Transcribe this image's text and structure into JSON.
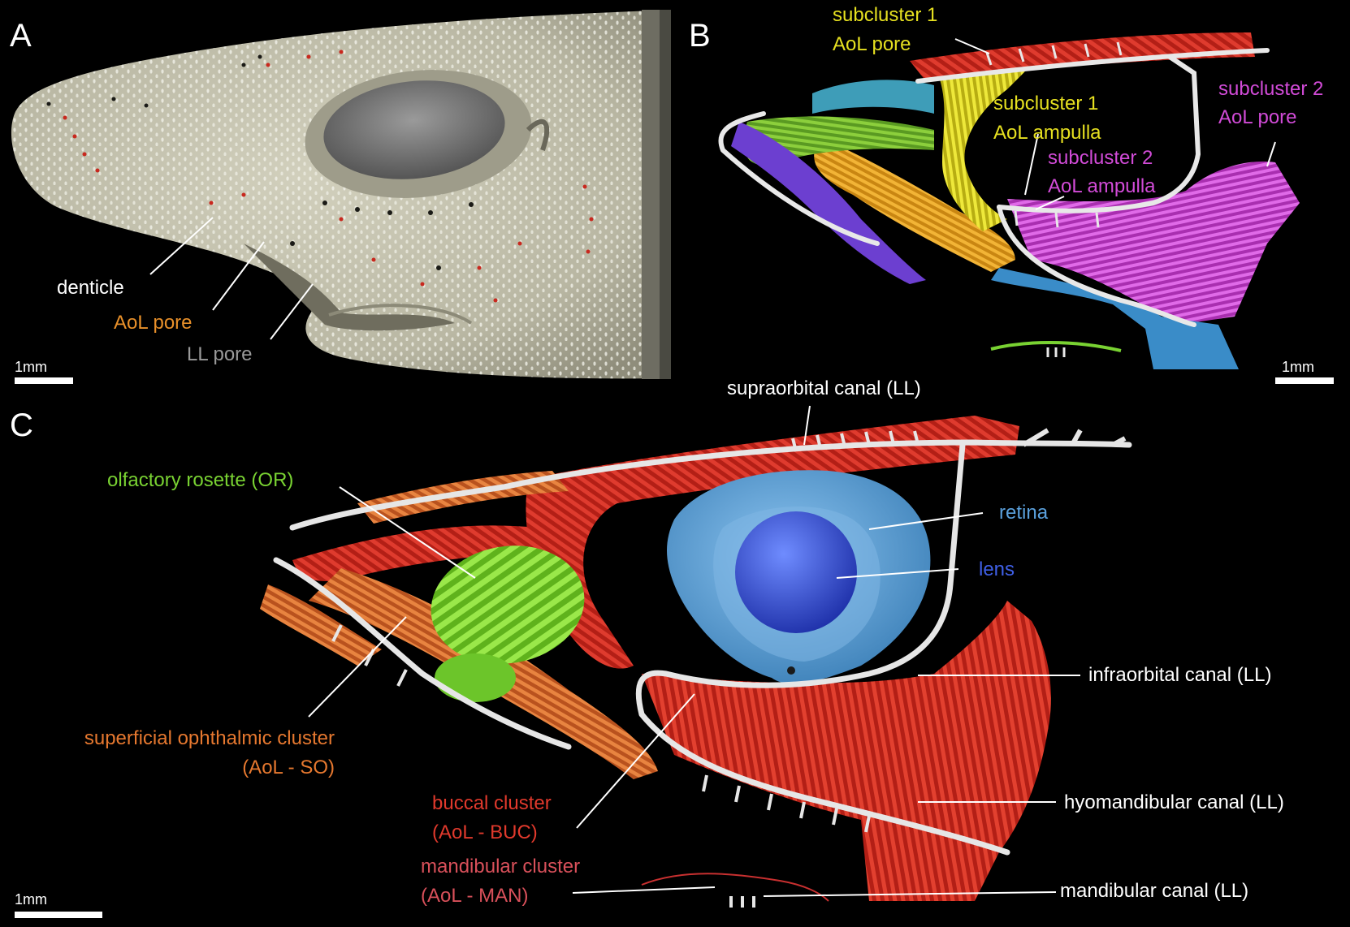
{
  "panels": {
    "a": {
      "letter": "A",
      "scale": "1mm",
      "labels": {
        "denticle": "denticle",
        "aol_pore": "AoL pore",
        "ll_pore": "LL pore"
      }
    },
    "b": {
      "letter": "B",
      "scale": "1mm",
      "labels": {
        "sub1_pore_1": "subcluster 1",
        "sub1_pore_2": "AoL pore",
        "sub1_amp_1": "subcluster 1",
        "sub1_amp_2": "AoL ampulla",
        "sub2_amp_1": "subcluster 2",
        "sub2_amp_2": "AoL ampulla",
        "sub2_pore_1": "subcluster 2",
        "sub2_pore_2": "AoL pore"
      }
    },
    "c": {
      "letter": "C",
      "scale": "1mm",
      "labels": {
        "supraorbital": "supraorbital canal (LL)",
        "olfactory": "olfactory rosette (OR)",
        "retina": "retina",
        "lens": "lens",
        "infraorbital": "infraorbital canal (LL)",
        "so_1": "superficial ophthalmic cluster",
        "so_2": "(AoL - SO)",
        "buc_1": "buccal cluster",
        "buc_2": "(AoL - BUC)",
        "hyomandibular": "hyomandibular canal (LL)",
        "man_1": "mandibular cluster",
        "man_2": "(AoL - MAN)",
        "mandibular_canal": "mandibular canal (LL)"
      }
    }
  },
  "colors": {
    "label_white": "#ffffff",
    "aol_orange": "#e8902a",
    "ll_gray": "#9a9a9a",
    "sub1_yellow": "#e6e020",
    "sub2_magenta": "#d24bd8",
    "olfactory_green": "#79d232",
    "retina_blue": "#5aa0dc",
    "lens_blue": "#3f5fe6",
    "so_orange": "#e6782f",
    "buccal_red": "#e0392c",
    "mandibular_pink": "#d8505a",
    "skin": "#c9c7b4",
    "canal": "#d8d8d8",
    "red_cluster": "#c8271e",
    "orange_cluster": "#d9642a",
    "cyan_cluster": "#3e8fb0"
  }
}
